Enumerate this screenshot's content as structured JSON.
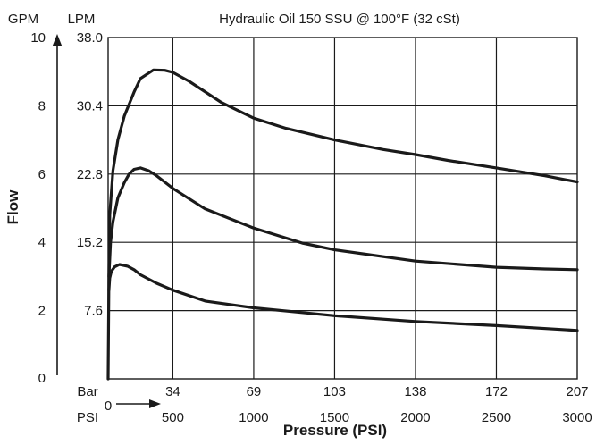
{
  "chart_data": {
    "type": "line",
    "title": "Hydraulic Oil 150 SSU @ 100°F (32 cSt)",
    "ylabel": "Flow",
    "xlabel": "Pressure (PSI)",
    "y_unit_left": "GPM",
    "y_unit_right": "LPM",
    "ylim": [
      0,
      10
    ],
    "gpm_ticks": [
      "0",
      "2",
      "4",
      "6",
      "8",
      "10"
    ],
    "gpm_tick_values": [
      0,
      2,
      4,
      6,
      8,
      10
    ],
    "lpm_ticks": [
      "7.6",
      "15.2",
      "22.8",
      "30.4",
      "38.0"
    ],
    "lpm_tick_values": [
      2,
      4,
      6,
      8,
      10
    ],
    "x_unit_bar": "Bar",
    "x_unit_psi": "PSI",
    "xlim": [
      0,
      3000
    ],
    "bar_ticks": [
      "34",
      "69",
      "103",
      "138",
      "172",
      "207"
    ],
    "psi_origin_label": "0",
    "psi_ticks": [
      "500",
      "1000",
      "1500",
      "2000",
      "2500",
      "3000"
    ],
    "x_tick_values": [
      500,
      1000,
      1500,
      2000,
      2500,
      3000
    ],
    "grid": true,
    "series": [
      {
        "x": [
          100,
          105,
          110,
          130,
          160,
          200,
          260,
          300,
          380,
          450,
          500,
          600,
          800,
          1000,
          1200,
          1500,
          1800,
          2000,
          2200,
          2500,
          2800,
          3000
        ],
        "y": [
          0,
          3.0,
          4.8,
          6.1,
          7.0,
          7.7,
          8.4,
          8.8,
          9.05,
          9.04,
          8.98,
          8.72,
          8.1,
          7.64,
          7.34,
          7.0,
          6.72,
          6.57,
          6.4,
          6.18,
          5.95,
          5.77
        ]
      },
      {
        "x": [
          105,
          115,
          130,
          160,
          200,
          230,
          260,
          300,
          350,
          400,
          500,
          700,
          1000,
          1300,
          1500,
          2000,
          2500,
          2800,
          3000
        ],
        "y": [
          3.0,
          4.0,
          4.6,
          5.3,
          5.75,
          6.0,
          6.14,
          6.18,
          6.1,
          5.95,
          5.58,
          4.98,
          4.42,
          3.98,
          3.78,
          3.45,
          3.27,
          3.22,
          3.2
        ]
      },
      {
        "x": [
          105,
          110,
          120,
          140,
          170,
          220,
          260,
          300,
          400,
          500,
          700,
          1000,
          1500,
          2000,
          2500,
          3000
        ],
        "y": [
          2.6,
          2.95,
          3.15,
          3.28,
          3.35,
          3.3,
          3.2,
          3.05,
          2.8,
          2.6,
          2.28,
          2.08,
          1.85,
          1.68,
          1.56,
          1.42
        ]
      }
    ]
  }
}
